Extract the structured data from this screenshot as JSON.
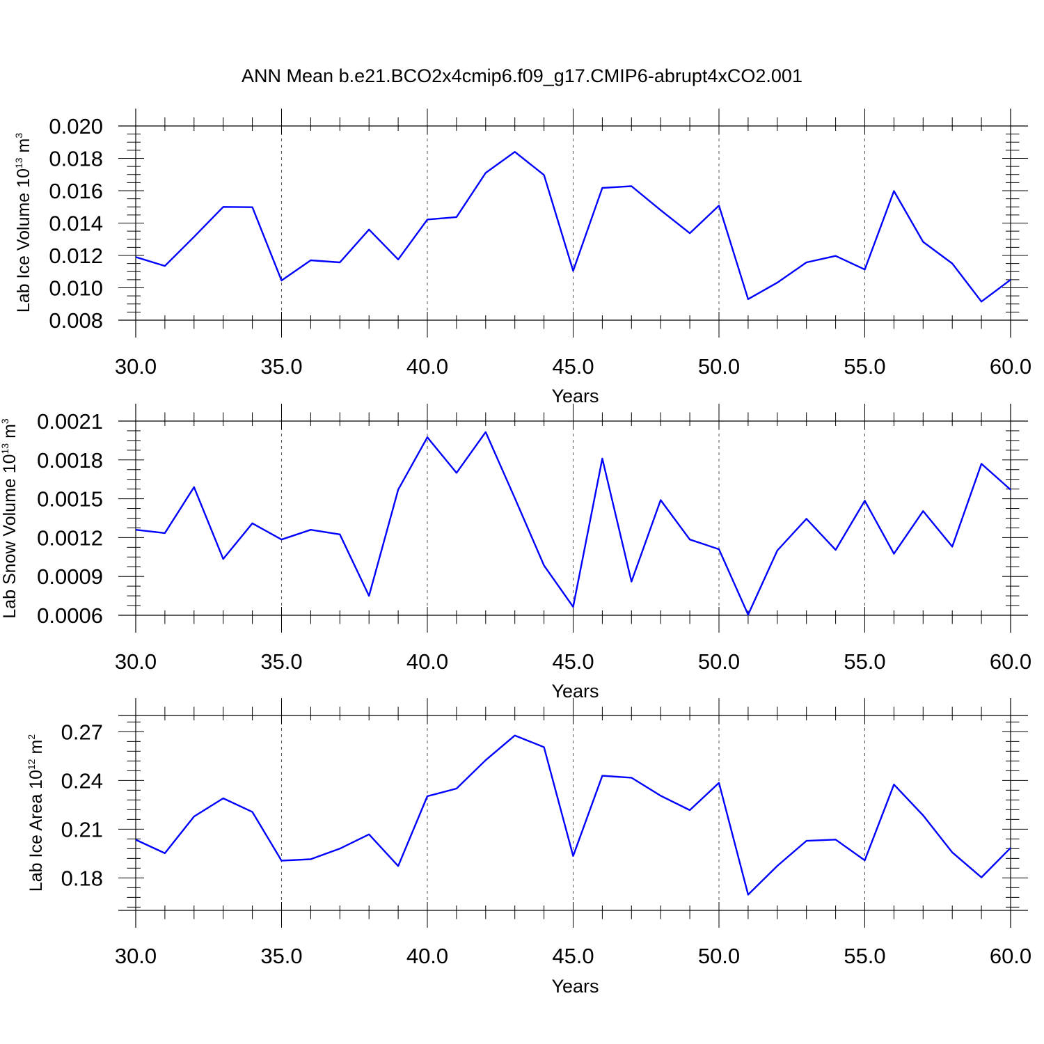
{
  "title": "ANN Mean b.e21.BCO2x4cmip6.f09_g17.CMIP6-abrupt4xCO2.001",
  "chart_data": [
    {
      "type": "line",
      "xlabel": "Years",
      "ylabel": {
        "text": "Lab Ice Volume 10",
        "exp": "13",
        "unit": " m",
        "unit_exp": "3"
      },
      "xlim": [
        30,
        60
      ],
      "ylim": [
        0.008,
        0.02
      ],
      "yticks": [
        0.008,
        0.01,
        0.012,
        0.014,
        0.016,
        0.018,
        0.02
      ],
      "ytick_labels": [
        "0.008",
        "0.010",
        "0.012",
        "0.014",
        "0.016",
        "0.018",
        "0.020"
      ],
      "xticks": [
        30,
        35,
        40,
        45,
        50,
        55,
        60
      ],
      "xtick_labels": [
        "30.0",
        "35.0",
        "40.0",
        "45.0",
        "50.0",
        "55.0",
        "60.0"
      ],
      "grid": "vertical dashed at major x ticks",
      "series": [
        {
          "color": "#0000ff",
          "x": [
            30,
            31,
            32,
            33,
            34,
            35,
            36,
            37,
            38,
            39,
            40,
            41,
            42,
            43,
            44,
            45,
            46,
            47,
            48,
            49,
            50,
            51,
            52,
            53,
            54,
            55,
            56,
            57,
            58,
            59,
            60
          ],
          "values": [
            0.0119,
            0.01135,
            0.01315,
            0.015,
            0.01498,
            0.01045,
            0.0117,
            0.01157,
            0.0136,
            0.01175,
            0.01422,
            0.01437,
            0.0171,
            0.0184,
            0.01697,
            0.01105,
            0.01617,
            0.01628,
            0.0148,
            0.01337,
            0.01508,
            0.0093,
            0.01032,
            0.01157,
            0.01197,
            0.01113,
            0.01598,
            0.01284,
            0.0115,
            0.00915,
            0.0105
          ]
        }
      ]
    },
    {
      "type": "line",
      "xlabel": "Years",
      "ylabel": {
        "text": "Lab Snow Volume 10",
        "exp": "13",
        "unit": " m",
        "unit_exp": "3"
      },
      "xlim": [
        30,
        60
      ],
      "ylim": [
        0.0006,
        0.0021
      ],
      "yticks": [
        0.0006,
        0.0009,
        0.0012,
        0.0015,
        0.0018,
        0.0021
      ],
      "ytick_labels": [
        "0.0006",
        "0.0009",
        "0.0012",
        "0.0015",
        "0.0018",
        "0.0021"
      ],
      "xticks": [
        30,
        35,
        40,
        45,
        50,
        55,
        60
      ],
      "xtick_labels": [
        "30.0",
        "35.0",
        "40.0",
        "45.0",
        "50.0",
        "55.0",
        "60.0"
      ],
      "grid": "vertical dashed at major x ticks",
      "series": [
        {
          "color": "#0000ff",
          "x": [
            30,
            31,
            32,
            33,
            34,
            35,
            36,
            37,
            38,
            39,
            40,
            41,
            42,
            43,
            44,
            45,
            46,
            47,
            48,
            49,
            50,
            51,
            52,
            53,
            54,
            55,
            56,
            57,
            58,
            59,
            60
          ],
          "values": [
            0.00126,
            0.001235,
            0.00159,
            0.001035,
            0.00131,
            0.001185,
            0.00126,
            0.001225,
            0.00075,
            0.00157,
            0.001975,
            0.0017,
            0.002015,
            0.001505,
            0.000985,
            0.000665,
            0.00181,
            0.00086,
            0.00149,
            0.001185,
            0.00111,
            0.000605,
            0.0011,
            0.001345,
            0.001105,
            0.001485,
            0.001075,
            0.001405,
            0.00113,
            0.00177,
            0.00157
          ]
        }
      ]
    },
    {
      "type": "line",
      "xlabel": "Years",
      "ylabel": {
        "text": "Lab Ice Area 10",
        "exp": "12",
        "unit": " m",
        "unit_exp": "2"
      },
      "xlim": [
        30,
        60
      ],
      "ylim": [
        0.16,
        0.28
      ],
      "yticks": [
        0.18,
        0.21,
        0.24,
        0.27
      ],
      "ytick_labels": [
        "0.18",
        "0.21",
        "0.24",
        "0.27"
      ],
      "xticks": [
        30,
        35,
        40,
        45,
        50,
        55,
        60
      ],
      "xtick_labels": [
        "30.0",
        "35.0",
        "40.0",
        "45.0",
        "50.0",
        "55.0",
        "60.0"
      ],
      "grid": "vertical dashed at major x ticks",
      "series": [
        {
          "color": "#0000ff",
          "x": [
            30,
            31,
            32,
            33,
            34,
            35,
            36,
            37,
            38,
            39,
            40,
            41,
            42,
            43,
            44,
            45,
            46,
            47,
            48,
            49,
            50,
            51,
            52,
            53,
            54,
            55,
            56,
            57,
            58,
            59,
            60
          ],
          "values": [
            0.2035,
            0.1952,
            0.2178,
            0.229,
            0.2206,
            0.1906,
            0.1915,
            0.198,
            0.2068,
            0.1873,
            0.2303,
            0.235,
            0.2525,
            0.2677,
            0.2605,
            0.1935,
            0.2429,
            0.2417,
            0.2306,
            0.2217,
            0.2385,
            0.1697,
            0.1874,
            0.2028,
            0.2036,
            0.1908,
            0.2375,
            0.2185,
            0.1957,
            0.1803,
            0.1985
          ]
        }
      ]
    }
  ]
}
